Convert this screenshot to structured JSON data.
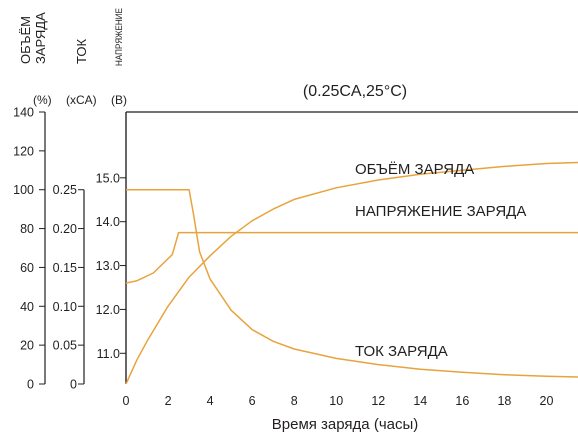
{
  "chart_data": {
    "type": "line",
    "title": "(0.25CA,25°C)",
    "xlabel": "Время заряда (часы)",
    "xlim": [
      0,
      21.5
    ],
    "x_ticks": [
      0,
      2,
      4,
      6,
      8,
      10,
      12,
      14,
      16,
      18,
      20
    ],
    "axes": {
      "capacity": {
        "label_lines": [
          "ОБЪЁМ",
          "ЗАРЯДА"
        ],
        "unit": "(%)",
        "ylim": [
          0,
          140
        ],
        "ticks": [
          0,
          20,
          40,
          60,
          80,
          100,
          120,
          140
        ]
      },
      "current": {
        "label": "ТОК",
        "unit": "(xCA)",
        "ylim": [
          0,
          0.35
        ],
        "ticks": [
          "0",
          "0.05",
          "0.10",
          "0.15",
          "0.20",
          "0.25"
        ]
      },
      "voltage": {
        "label": "НАПРЯЖЕНИЕ",
        "unit": "(В)",
        "ylim": [
          10.3,
          16.5
        ],
        "ticks": [
          "11.0",
          "12.0",
          "13.0",
          "14.0",
          "15.0"
        ]
      }
    },
    "series": [
      {
        "name": "ОБЪЁМ ЗАРЯДА",
        "axis": "capacity",
        "points": [
          [
            0,
            0
          ],
          [
            0.5,
            12
          ],
          [
            1,
            22
          ],
          [
            2,
            40
          ],
          [
            3,
            55
          ],
          [
            4,
            66
          ],
          [
            5,
            76
          ],
          [
            6,
            84
          ],
          [
            7,
            90
          ],
          [
            8,
            95
          ],
          [
            10,
            101
          ],
          [
            12,
            105
          ],
          [
            14,
            108
          ],
          [
            16,
            110
          ],
          [
            18,
            112
          ],
          [
            20,
            113.5
          ],
          [
            21.5,
            114
          ]
        ]
      },
      {
        "name": "НАПРЯЖЕНИЕ ЗАРЯДА",
        "axis": "voltage",
        "points": [
          [
            0,
            12.6
          ],
          [
            0.5,
            12.65
          ],
          [
            1.3,
            12.83
          ],
          [
            2.2,
            13.25
          ],
          [
            2.5,
            13.75
          ],
          [
            4,
            13.75
          ],
          [
            8,
            13.75
          ],
          [
            12,
            13.75
          ],
          [
            16,
            13.75
          ],
          [
            21.5,
            13.75
          ]
        ]
      },
      {
        "name": "ТОК ЗАРЯДА",
        "axis": "current",
        "points": [
          [
            0,
            0.25
          ],
          [
            1,
            0.25
          ],
          [
            2,
            0.25
          ],
          [
            3,
            0.25
          ],
          [
            3.2,
            0.22
          ],
          [
            3.5,
            0.17
          ],
          [
            4,
            0.135
          ],
          [
            5,
            0.095
          ],
          [
            6,
            0.07
          ],
          [
            7,
            0.055
          ],
          [
            8,
            0.045
          ],
          [
            10,
            0.033
          ],
          [
            12,
            0.025
          ],
          [
            14,
            0.019
          ],
          [
            16,
            0.015
          ],
          [
            18,
            0.012
          ],
          [
            20,
            0.01
          ],
          [
            21.5,
            0.009
          ]
        ]
      }
    ],
    "annotations": [
      "ОБЪЁМ ЗАРЯДА",
      "НАПРЯЖЕНИЕ ЗАРЯДА",
      "ТОК ЗАРЯДА"
    ],
    "colors": {
      "series": "#e8a33d",
      "axis": "#231f20"
    }
  }
}
